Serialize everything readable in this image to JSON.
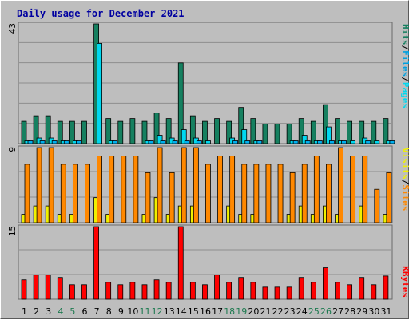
{
  "chart_data": {
    "title": "Daily usage for December 2021",
    "categories": [
      "1",
      "2",
      "3",
      "4",
      "5",
      "6",
      "7",
      "8",
      "9",
      "10",
      "11",
      "12",
      "13",
      "14",
      "15",
      "16",
      "17",
      "18",
      "19",
      "20",
      "21",
      "22",
      "23",
      "24",
      "25",
      "26",
      "27",
      "28",
      "29",
      "30",
      "31"
    ],
    "weekend_days": [
      4,
      5,
      11,
      12,
      18,
      19,
      25,
      26
    ],
    "colors": {
      "title": "#0000a0",
      "panel_bg": "#bebebe",
      "grid": "#8e8e8e",
      "hits": "#168060",
      "files": "#00d8f0",
      "pages": "#00b0f0",
      "visits": "#f0f000",
      "sites": "#ff8800",
      "kbytes": "#ff0000",
      "weekday_label": "#000000",
      "weekend_label": "#1e7a50"
    },
    "panels": [
      {
        "type": "bar",
        "max_label": "43",
        "ylim": [
          0,
          43
        ],
        "legend": [
          {
            "text": "Hits",
            "color": "#168060"
          },
          {
            "text": "/",
            "color": "#000000"
          },
          {
            "text": "Files",
            "color": "#00a0e0"
          },
          {
            "text": "/",
            "color": "#000000"
          },
          {
            "text": "Pages",
            "color": "#00d8f0"
          }
        ],
        "series": [
          {
            "name": "Hits",
            "color": "#168060",
            "values": [
              8,
              10,
              10,
              8,
              8,
              8,
              43,
              9,
              8,
              9,
              8,
              11,
              9,
              29,
              10,
              8,
              9,
              8,
              13,
              9,
              7,
              7,
              7,
              9,
              8,
              14,
              9,
              8,
              8,
              8,
              9
            ]
          },
          {
            "name": "Files",
            "color": "#00d8f0",
            "values": [
              1,
              2,
              2,
              1,
              1,
              0,
              36,
              1,
              0,
              0,
              1,
              3,
              2,
              5,
              2,
              1,
              0,
              2,
              5,
              1,
              0,
              0,
              1,
              3,
              1,
              6,
              1,
              1,
              2,
              1,
              1
            ]
          },
          {
            "name": "Pages",
            "color": "#00b0f0",
            "values": [
              1,
              1,
              1,
              1,
              1,
              0,
              0,
              1,
              0,
              0,
              1,
              1,
              1,
              1,
              1,
              0,
              0,
              1,
              1,
              1,
              0,
              0,
              1,
              1,
              1,
              1,
              1,
              0,
              1,
              0,
              1
            ]
          }
        ]
      },
      {
        "type": "bar",
        "max_label": "9",
        "ylim": [
          0,
          9
        ],
        "legend": [
          {
            "text": "Visits",
            "color": "#f0f000"
          },
          {
            "text": "/",
            "color": "#000000"
          },
          {
            "text": "Sites",
            "color": "#ff8800"
          }
        ],
        "series": [
          {
            "name": "Visits",
            "color": "#f0f000",
            "values": [
              1,
              2,
              2,
              1,
              1,
              0,
              3,
              1,
              0,
              0,
              1,
              3,
              1,
              2,
              2,
              0,
              0,
              2,
              1,
              1,
              0,
              0,
              1,
              2,
              1,
              2,
              1,
              0,
              2,
              0,
              1
            ]
          },
          {
            "name": "Sites",
            "color": "#ff8800",
            "values": [
              7,
              9,
              9,
              7,
              7,
              7,
              8,
              8,
              8,
              8,
              6,
              9,
              6,
              9,
              9,
              7,
              8,
              8,
              7,
              7,
              7,
              7,
              6,
              7,
              8,
              7,
              9,
              8,
              8,
              4,
              6
            ]
          }
        ]
      },
      {
        "type": "bar",
        "max_label": "15",
        "ylim": [
          0,
          15
        ],
        "legend": [
          {
            "text": "KBytes",
            "color": "#ff0000"
          }
        ],
        "series": [
          {
            "name": "KBytes",
            "color": "#ff0000",
            "values": [
              4,
              5,
              5,
              4.5,
              3,
              3,
              15,
              3.5,
              3,
              3.5,
              3,
              4,
              3.5,
              15,
              3.5,
              3,
              5,
              3.5,
              4.5,
              3.5,
              2.5,
              2.5,
              2.5,
              4.5,
              3.5,
              6.5,
              3.5,
              3,
              4.5,
              3,
              4.8
            ]
          }
        ]
      }
    ]
  }
}
